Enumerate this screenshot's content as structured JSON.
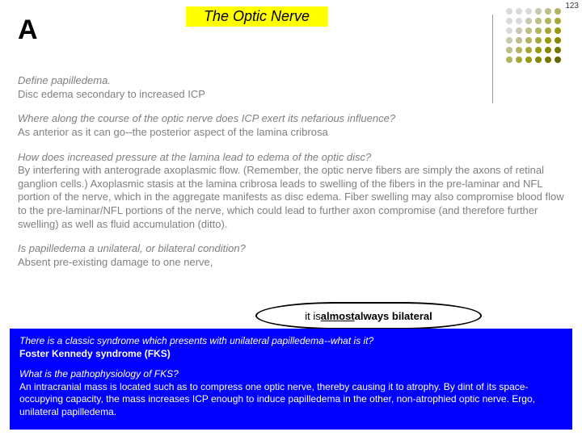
{
  "page_number": "123",
  "letter": "A",
  "title": "The Optic Nerve",
  "dot_colors": [
    "#d9d9d9",
    "#d9d9d9",
    "#d9d9d9",
    "#c8c8b0",
    "#bdbd88",
    "#b2b260",
    "#d9d9d9",
    "#d9d9d9",
    "#c8c8b0",
    "#bdbd88",
    "#b2b260",
    "#a6a638",
    "#d9d9d9",
    "#c8c8b0",
    "#bdbd88",
    "#b2b260",
    "#a6a638",
    "#999910",
    "#c8c8b0",
    "#bdbd88",
    "#b2b260",
    "#a6a638",
    "#999910",
    "#888800",
    "#bdbd88",
    "#b2b260",
    "#a6a638",
    "#999910",
    "#888800",
    "#777700",
    "#b2b260",
    "#a6a638",
    "#999910",
    "#888800",
    "#777700",
    "#666600"
  ],
  "q1": "Define papilledema.",
  "a1": "Disc edema secondary to increased ICP",
  "q2": "Where along the course of the optic nerve does ICP exert its nefarious influence?",
  "a2": "As anterior as it can go--the posterior aspect of the lamina cribrosa",
  "q3": "How does increased pressure at the lamina lead to edema of the optic disc?",
  "a3": "By interfering with anterograde axoplasmic flow. (Remember, the optic nerve fibers are simply the axons of retinal ganglion cells.) Axoplasmic stasis at the lamina cribrosa leads to swelling of the fibers in the pre-laminar and NFL portion of the nerve, which in the aggregate manifests as disc edema. Fiber swelling may also compromise blood flow to the pre-laminar/NFL portions of the nerve, which could lead to further axon compromise (and therefore further swelling) as well as fluid accumulation (ditto).",
  "q4": "Is papilledema a unilateral, or bilateral condition?",
  "a4": "Absent pre-existing damage to one nerve,",
  "oval_prefix": "it is ",
  "oval_u": "almost",
  "oval_suffix": " always bilateral",
  "bq1": "There is a classic syndrome which presents with unilateral papilledema--what is it?",
  "ba1": "Foster Kennedy syndrome (FKS)",
  "bq2": "What is the pathophysiology of FKS?",
  "ba2": "An intracranial mass is located such as to compress one optic nerve, thereby causing it to atrophy. By dint of its space-occupying capacity, the mass increases ICP enough to induce papilledema in the other, non-atrophied optic nerve. Ergo, unilateral papilledema."
}
